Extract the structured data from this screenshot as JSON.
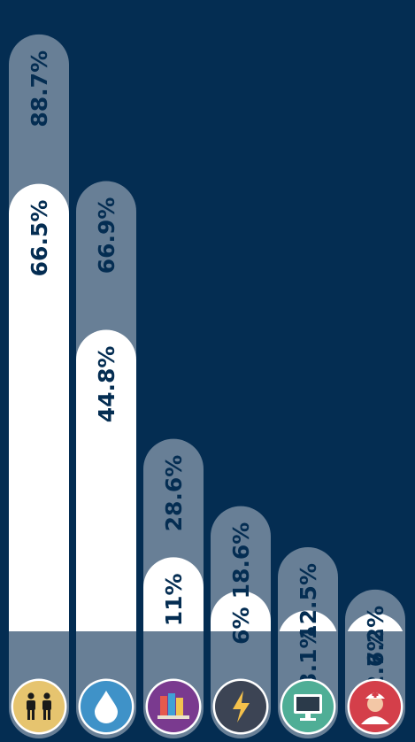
{
  "chart_data": {
    "type": "bar",
    "orientation": "vertical",
    "categories": [
      "people",
      "water",
      "books",
      "electricity",
      "computer",
      "health"
    ],
    "icons": [
      "people-icon",
      "water-drop-icon",
      "books-icon",
      "lightning-icon",
      "computer-icon",
      "nurse-icon"
    ],
    "icon_colors": [
      "#e6c46f",
      "#3f92c8",
      "#7a3a8f",
      "#3c4454",
      "#4fae96",
      "#d43f4a"
    ],
    "ylim": [
      0,
      100
    ],
    "series": [
      {
        "values": [
          88.7,
          66.9,
          28.6,
          18.6,
          12.5,
          6.2
        ],
        "labels": [
          "88.7%",
          "66.9%",
          "28.6%",
          "18.6%",
          "12.5%",
          "6.2%"
        ],
        "color": "#687f96"
      },
      {
        "values": [
          66.5,
          44.8,
          11,
          6,
          3.1,
          2.7
        ],
        "labels": [
          "66.5%",
          "44.8%",
          "11%",
          "6%",
          "3.1%",
          "2.7%"
        ],
        "color": "#ffffff"
      }
    ],
    "colors": {
      "background": "#042d52",
      "base": "#687f96",
      "text": "#042d52"
    }
  }
}
